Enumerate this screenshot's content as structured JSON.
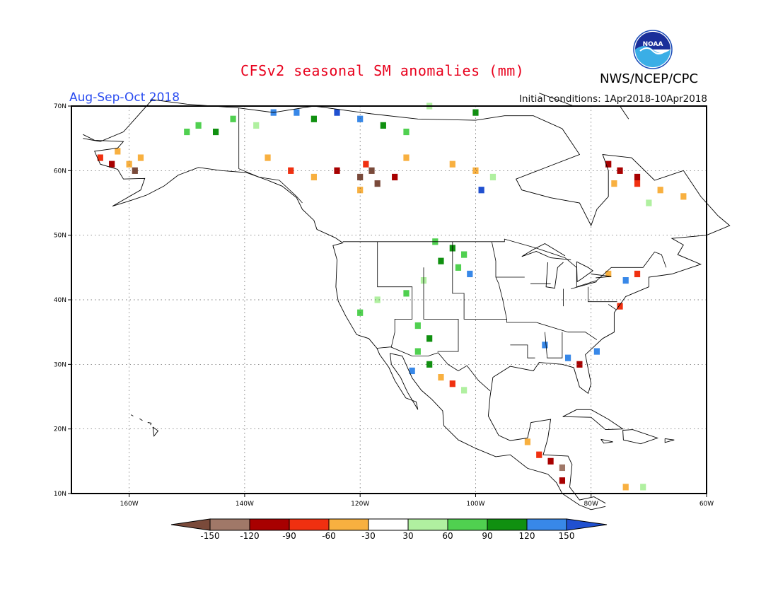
{
  "title": "CFSv2 seasonal SM anomalies (mm)",
  "period": "Aug-Sep-Oct 2018",
  "initial_conditions": "Initial conditions: 1Apr2018-10Apr2018",
  "organization": "NWS/NCEP/CPC",
  "logo_text": "NOAA",
  "map": {
    "region": "North America",
    "lat_labels": [
      "70N",
      "60N",
      "50N",
      "40N",
      "30N",
      "20N",
      "10N"
    ],
    "lon_labels": [
      "160W",
      "140W",
      "120W",
      "100W",
      "80W",
      "60W"
    ]
  },
  "colorbar": {
    "tick_labels": [
      "-150",
      "-120",
      "-90",
      "-60",
      "-30",
      "30",
      "60",
      "90",
      "120",
      "150"
    ],
    "colors": [
      "#7a4a3a",
      "#a07868",
      "#a80000",
      "#f03010",
      "#f8b040",
      "#ffffff",
      "#b0f0a0",
      "#50d050",
      "#109010",
      "#3888e8",
      "#2050d0"
    ]
  },
  "anomaly_cells": [
    {
      "lat": 63,
      "lon": -162,
      "cat": "dry_1"
    },
    {
      "lat": 61,
      "lon": -160,
      "cat": "dry_1"
    },
    {
      "lat": 62,
      "lon": -158,
      "cat": "dry_1"
    },
    {
      "lat": 61,
      "lon": -163,
      "cat": "dry_3"
    },
    {
      "lat": 62,
      "lon": -165,
      "cat": "dry_2"
    },
    {
      "lat": 60,
      "lon": -159,
      "cat": "dry_5"
    },
    {
      "lat": 66,
      "lon": -150,
      "cat": "wet_2"
    },
    {
      "lat": 67,
      "lon": -148,
      "cat": "wet_2"
    },
    {
      "lat": 66,
      "lon": -145,
      "cat": "wet_3"
    },
    {
      "lat": 68,
      "lon": -142,
      "cat": "wet_2"
    },
    {
      "lat": 67,
      "lon": -138,
      "cat": "wet_1"
    },
    {
      "lat": 69,
      "lon": -135,
      "cat": "wet_4"
    },
    {
      "lat": 69,
      "lon": -131,
      "cat": "wet_4"
    },
    {
      "lat": 68,
      "lon": -128,
      "cat": "wet_3"
    },
    {
      "lat": 69,
      "lon": -124,
      "cat": "wet_5"
    },
    {
      "lat": 68,
      "lon": -120,
      "cat": "wet_4"
    },
    {
      "lat": 67,
      "lon": -116,
      "cat": "wet_3"
    },
    {
      "lat": 66,
      "lon": -112,
      "cat": "wet_2"
    },
    {
      "lat": 70,
      "lon": -108,
      "cat": "wet_1"
    },
    {
      "lat": 69,
      "lon": -100,
      "cat": "wet_3"
    },
    {
      "lat": 62,
      "lon": -136,
      "cat": "dry_1"
    },
    {
      "lat": 60,
      "lon": -132,
      "cat": "dry_2"
    },
    {
      "lat": 59,
      "lon": -128,
      "cat": "dry_1"
    },
    {
      "lat": 60,
      "lon": -124,
      "cat": "dry_3"
    },
    {
      "lat": 59,
      "lon": -120,
      "cat": "dry_5"
    },
    {
      "lat": 60,
      "lon": -118,
      "cat": "dry_5"
    },
    {
      "lat": 58,
      "lon": -117,
      "cat": "dry_5"
    },
    {
      "lat": 61,
      "lon": -119,
      "cat": "dry_2"
    },
    {
      "lat": 59,
      "lon": -114,
      "cat": "dry_3"
    },
    {
      "lat": 57,
      "lon": -120,
      "cat": "dry_1"
    },
    {
      "lat": 62,
      "lon": -112,
      "cat": "dry_1"
    },
    {
      "lat": 61,
      "lon": -104,
      "cat": "dry_1"
    },
    {
      "lat": 60,
      "lon": -100,
      "cat": "dry_1"
    },
    {
      "lat": 57,
      "lon": -99,
      "cat": "wet_5"
    },
    {
      "lat": 59,
      "lon": -97,
      "cat": "wet_1"
    },
    {
      "lat": 61,
      "lon": -77,
      "cat": "dry_3"
    },
    {
      "lat": 60,
      "lon": -75,
      "cat": "dry_3"
    },
    {
      "lat": 59,
      "lon": -72,
      "cat": "dry_3"
    },
    {
      "lat": 58,
      "lon": -76,
      "cat": "dry_1"
    },
    {
      "lat": 57,
      "lon": -68,
      "cat": "dry_1"
    },
    {
      "lat": 58,
      "lon": -72,
      "cat": "dry_2"
    },
    {
      "lat": 56,
      "lon": -64,
      "cat": "dry_1"
    },
    {
      "lat": 55,
      "lon": -70,
      "cat": "wet_1"
    },
    {
      "lat": 49,
      "lon": -107,
      "cat": "wet_2"
    },
    {
      "lat": 48,
      "lon": -104,
      "cat": "wet_3"
    },
    {
      "lat": 47,
      "lon": -102,
      "cat": "wet_2"
    },
    {
      "lat": 46,
      "lon": -106,
      "cat": "wet_3"
    },
    {
      "lat": 45,
      "lon": -103,
      "cat": "wet_2"
    },
    {
      "lat": 44,
      "lon": -101,
      "cat": "wet_4"
    },
    {
      "lat": 43,
      "lon": -109,
      "cat": "wet_1"
    },
    {
      "lat": 41,
      "lon": -112,
      "cat": "wet_2"
    },
    {
      "lat": 40,
      "lon": -117,
      "cat": "wet_1"
    },
    {
      "lat": 38,
      "lon": -120,
      "cat": "wet_2"
    },
    {
      "lat": 36,
      "lon": -110,
      "cat": "wet_2"
    },
    {
      "lat": 34,
      "lon": -108,
      "cat": "wet_3"
    },
    {
      "lat": 32,
      "lon": -110,
      "cat": "wet_2"
    },
    {
      "lat": 30,
      "lon": -108,
      "cat": "wet_3"
    },
    {
      "lat": 28,
      "lon": -106,
      "cat": "dry_1"
    },
    {
      "lat": 27,
      "lon": -104,
      "cat": "dry_2"
    },
    {
      "lat": 29,
      "lon": -111,
      "cat": "wet_4"
    },
    {
      "lat": 26,
      "lon": -102,
      "cat": "wet_1"
    },
    {
      "lat": 44,
      "lon": -77,
      "cat": "dry_1"
    },
    {
      "lat": 43,
      "lon": -74,
      "cat": "wet_4"
    },
    {
      "lat": 44,
      "lon": -72,
      "cat": "dry_2"
    },
    {
      "lat": 39,
      "lon": -75,
      "cat": "dry_2"
    },
    {
      "lat": 33,
      "lon": -88,
      "cat": "wet_4"
    },
    {
      "lat": 31,
      "lon": -84,
      "cat": "wet_4"
    },
    {
      "lat": 32,
      "lon": -79,
      "cat": "wet_4"
    },
    {
      "lat": 30,
      "lon": -82,
      "cat": "dry_3"
    },
    {
      "lat": 15,
      "lon": -87,
      "cat": "dry_3"
    },
    {
      "lat": 14,
      "lon": -85,
      "cat": "dry_4"
    },
    {
      "lat": 12,
      "lon": -85,
      "cat": "dry_3"
    },
    {
      "lat": 16,
      "lon": -89,
      "cat": "dry_2"
    },
    {
      "lat": 18,
      "lon": -91,
      "cat": "dry_1"
    },
    {
      "lat": 11,
      "lon": -74,
      "cat": "dry_1"
    },
    {
      "lat": 11,
      "lon": -71,
      "cat": "wet_1"
    }
  ]
}
